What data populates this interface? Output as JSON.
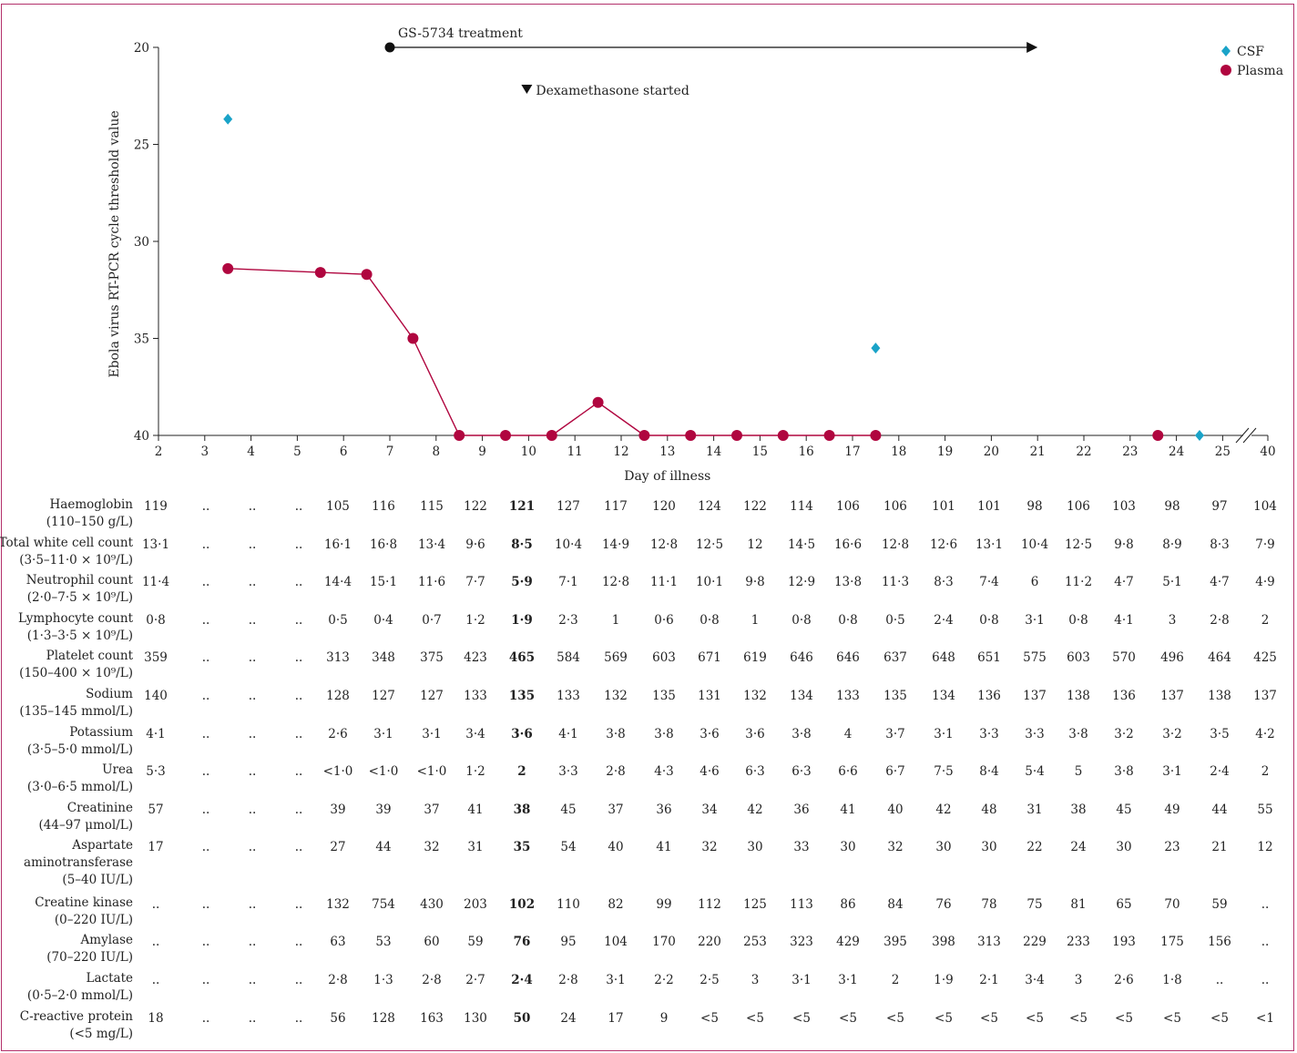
{
  "chart_data": {
    "type": "scatter",
    "title": "",
    "xlabel": "Day of illness",
    "ylabel": "Ebola virus RT-PCR cycle threshold value",
    "y_inverted": true,
    "ylim": [
      20,
      40
    ],
    "y_ticks": [
      "20",
      "25",
      "30",
      "35",
      "40"
    ],
    "x_ticks": [
      "2",
      "3",
      "4",
      "5",
      "6",
      "7",
      "8",
      "9",
      "10",
      "11",
      "12",
      "13",
      "14",
      "15",
      "16",
      "17",
      "18",
      "19",
      "20",
      "21",
      "22",
      "23",
      "24",
      "25",
      "40"
    ],
    "axis_break_between": [
      "25",
      "40"
    ],
    "legend": {
      "placement": "top-right",
      "items": [
        "CSF",
        "Plasma"
      ]
    },
    "series": [
      {
        "name": "CSF",
        "marker": "diamond",
        "color": "#1aa3c8",
        "connected": false,
        "points": [
          {
            "x": 3.5,
            "y": 23.7
          },
          {
            "x": 17.5,
            "y": 35.5
          },
          {
            "x": 24.5,
            "y": 40
          }
        ]
      },
      {
        "name": "Plasma",
        "marker": "circle",
        "color": "#b0063f",
        "connected": true,
        "points": [
          {
            "x": 3.5,
            "y": 31.4
          },
          {
            "x": 5.5,
            "y": 31.6
          },
          {
            "x": 6.5,
            "y": 31.7
          },
          {
            "x": 7.5,
            "y": 35.0
          },
          {
            "x": 8.5,
            "y": 40
          },
          {
            "x": 9.5,
            "y": 40
          },
          {
            "x": 10.5,
            "y": 40
          },
          {
            "x": 11.5,
            "y": 38.3
          },
          {
            "x": 12.5,
            "y": 40
          },
          {
            "x": 13.5,
            "y": 40
          },
          {
            "x": 14.5,
            "y": 40
          },
          {
            "x": 15.5,
            "y": 40
          },
          {
            "x": 16.5,
            "y": 40
          },
          {
            "x": 17.5,
            "y": 40
          }
        ]
      },
      {
        "name": "Plasma",
        "marker": "circle",
        "color": "#b0063f",
        "connected": false,
        "points": [
          {
            "x": 23.6,
            "y": 40
          }
        ]
      }
    ],
    "annotations": [
      {
        "text": "GS-5734 treatment",
        "type": "arrow",
        "from_x": 7,
        "to_x": 21,
        "y": 20
      },
      {
        "text": "Dexamethasone started",
        "type": "marker",
        "x": 10
      }
    ]
  },
  "table": {
    "columns_x": [
      171,
      226,
      277,
      328,
      371,
      421,
      474,
      522,
      573,
      624,
      676,
      729,
      779,
      829,
      880,
      931,
      983,
      1036,
      1086,
      1136,
      1184,
      1234,
      1287,
      1339,
      1389
    ],
    "bold_column": 8,
    "rows": [
      {
        "label": [
          "Haemoglobin",
          "(110–150 g/L)"
        ],
        "top": 546,
        "values": [
          "119",
          "..",
          "..",
          "..",
          "105",
          "116",
          "115",
          "122",
          "121",
          "127",
          "117",
          "120",
          "124",
          "122",
          "114",
          "106",
          "106",
          "101",
          "101",
          "98",
          "106",
          "103",
          "98",
          "97",
          "104"
        ]
      },
      {
        "label": [
          "Total white cell count",
          "(3·5–11·0 × 10⁹/L)"
        ],
        "top": 588,
        "values": [
          "13·1",
          "..",
          "..",
          "..",
          "16·1",
          "16·8",
          "13·4",
          "9·6",
          "8·5",
          "10·4",
          "14·9",
          "12·8",
          "12·5",
          "12",
          "14·5",
          "16·6",
          "12·8",
          "12·6",
          "13·1",
          "10·4",
          "12·5",
          "9·8",
          "8·9",
          "8·3",
          "7·9"
        ]
      },
      {
        "label": [
          "Neutrophil count",
          "(2·0–7·5 × 10⁹/L)"
        ],
        "top": 629,
        "values": [
          "11·4",
          "..",
          "..",
          "..",
          "14·4",
          "15·1",
          "11·6",
          "7·7",
          "5·9",
          "7·1",
          "12·8",
          "11·1",
          "10·1",
          "9·8",
          "12·9",
          "13·8",
          "11·3",
          "8·3",
          "7·4",
          "6",
          "11·2",
          "4·7",
          "5·1",
          "4·7",
          "4·9"
        ]
      },
      {
        "label": [
          "Lymphocyte count",
          "(1·3–3·5 × 10⁹/L)"
        ],
        "top": 671,
        "values": [
          "0·8",
          "..",
          "..",
          "..",
          "0·5",
          "0·4",
          "0·7",
          "1·2",
          "1·9",
          "2·3",
          "1",
          "0·6",
          "0·8",
          "1",
          "0·8",
          "0·8",
          "0·5",
          "2·4",
          "0·8",
          "3·1",
          "0·8",
          "4·1",
          "3",
          "2·8",
          "2"
        ]
      },
      {
        "label": [
          "Platelet count",
          "(150–400 × 10⁹/L)"
        ],
        "top": 712,
        "values": [
          "359",
          "..",
          "..",
          "..",
          "313",
          "348",
          "375",
          "423",
          "465",
          "584",
          "569",
          "603",
          "671",
          "619",
          "646",
          "646",
          "637",
          "648",
          "651",
          "575",
          "603",
          "570",
          "496",
          "464",
          "425"
        ]
      },
      {
        "label": [
          "Sodium",
          "(135–145 mmol/L)"
        ],
        "top": 754,
        "values": [
          "140",
          "..",
          "..",
          "..",
          "128",
          "127",
          "127",
          "133",
          "135",
          "133",
          "132",
          "135",
          "131",
          "132",
          "134",
          "133",
          "135",
          "134",
          "136",
          "137",
          "138",
          "136",
          "137",
          "138",
          "137"
        ]
      },
      {
        "label": [
          "Potassium",
          "(3·5–5·0 mmol/L)"
        ],
        "top": 796,
        "values": [
          "4·1",
          "..",
          "..",
          "..",
          "2·6",
          "3·1",
          "3·1",
          "3·4",
          "3·6",
          "4·1",
          "3·8",
          "3·8",
          "3·6",
          "3·6",
          "3·8",
          "4",
          "3·7",
          "3·1",
          "3·3",
          "3·3",
          "3·8",
          "3·2",
          "3·2",
          "3·5",
          "4·2"
        ]
      },
      {
        "label": [
          "Urea",
          "(3·0–6·5 mmol/L)"
        ],
        "top": 837,
        "values": [
          "5·3",
          "..",
          "..",
          "..",
          "<1·0",
          "<1·0",
          "<1·0",
          "1·2",
          "2",
          "3·3",
          "2·8",
          "4·3",
          "4·6",
          "6·3",
          "6·3",
          "6·6",
          "6·7",
          "7·5",
          "8·4",
          "5·4",
          "5",
          "3·8",
          "3·1",
          "2·4",
          "2"
        ]
      },
      {
        "label": [
          "Creatinine",
          "(44–97 μmol/L)"
        ],
        "top": 879,
        "values": [
          "57",
          "..",
          "..",
          "..",
          "39",
          "39",
          "37",
          "41",
          "38",
          "45",
          "37",
          "36",
          "34",
          "42",
          "36",
          "41",
          "40",
          "42",
          "48",
          "31",
          "38",
          "45",
          "49",
          "44",
          "55"
        ]
      },
      {
        "label": [
          "Aspartate",
          "aminotransferase",
          "(5–40 IU/L)"
        ],
        "top": 920,
        "values": [
          "17",
          "..",
          "..",
          "..",
          "27",
          "44",
          "32",
          "31",
          "35",
          "54",
          "40",
          "41",
          "32",
          "30",
          "33",
          "30",
          "32",
          "30",
          "30",
          "22",
          "24",
          "30",
          "23",
          "21",
          "12"
        ]
      },
      {
        "label": [
          "Creatine kinase",
          "(0–220 IU/L)"
        ],
        "top": 983,
        "values": [
          "..",
          "..",
          "..",
          "..",
          "132",
          "754",
          "430",
          "203",
          "102",
          "110",
          "82",
          "99",
          "112",
          "125",
          "113",
          "86",
          "84",
          "76",
          "78",
          "75",
          "81",
          "65",
          "70",
          "59",
          ".."
        ]
      },
      {
        "label": [
          "Amylase",
          "(70–220 IU/L)"
        ],
        "top": 1024,
        "values": [
          "..",
          "..",
          "..",
          "..",
          "63",
          "53",
          "60",
          "59",
          "76",
          "95",
          "104",
          "170",
          "220",
          "253",
          "323",
          "429",
          "395",
          "398",
          "313",
          "229",
          "233",
          "193",
          "175",
          "156",
          ".."
        ]
      },
      {
        "label": [
          "Lactate",
          "(0·5–2·0 mmol/L)"
        ],
        "top": 1066,
        "values": [
          "..",
          "..",
          "..",
          "..",
          "2·8",
          "1·3",
          "2·8",
          "2·7",
          "2·4",
          "2·8",
          "3·1",
          "2·2",
          "2·5",
          "3",
          "3·1",
          "3·1",
          "2",
          "1·9",
          "2·1",
          "3·4",
          "3",
          "2·6",
          "1·8",
          "..",
          ".."
        ]
      },
      {
        "label": [
          "C-reactive protein",
          "(<5 mg/L)"
        ],
        "top": 1108,
        "values": [
          "18",
          "..",
          "..",
          "..",
          "56",
          "128",
          "163",
          "130",
          "50",
          "24",
          "17",
          "9",
          "<5",
          "<5",
          "<5",
          "<5",
          "<5",
          "<5",
          "<5",
          "<5",
          "<5",
          "<5",
          "<5",
          "<5",
          "<1"
        ]
      }
    ]
  }
}
